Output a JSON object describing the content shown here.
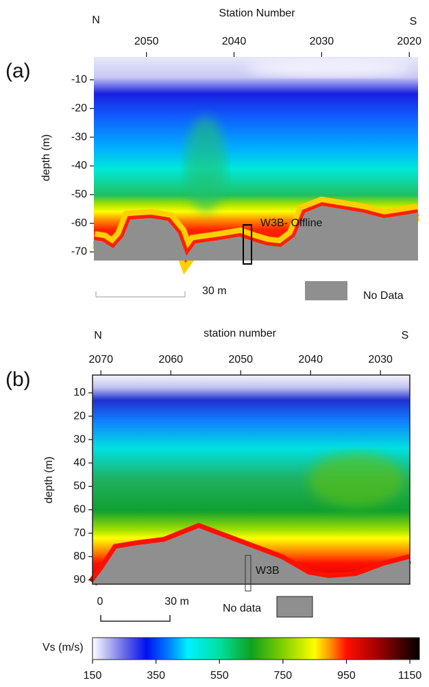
{
  "chart_data": [
    {
      "type": "heatmap",
      "panel_label": "(a)",
      "title": "Station Number",
      "ylabel": "depth (m)",
      "left_label": "N",
      "right_label": "S",
      "xlim": [
        2056,
        2019
      ],
      "xticks": [
        2050,
        2040,
        2030,
        2020
      ],
      "ylim": [
        -2,
        -73
      ],
      "yticks": [
        -10,
        -20,
        -30,
        -40,
        -50,
        -60,
        -70
      ],
      "annotations": [
        "W3B- Offline"
      ],
      "scale_labels": [
        "30 m"
      ],
      "no_data_label": "No Data"
    },
    {
      "type": "heatmap",
      "panel_label": "(b)",
      "title": "station number",
      "ylabel": "depth (m)",
      "left_label": "N",
      "right_label": "S",
      "xlim": [
        2071.2,
        2025.8
      ],
      "xticks": [
        2070,
        2060,
        2050,
        2040,
        2030
      ],
      "ylim": [
        2.4,
        91.8
      ],
      "yticks": [
        10,
        20,
        30,
        40,
        50,
        60,
        70,
        80,
        90
      ],
      "annotations": [
        "W3B"
      ],
      "scale_labels": [
        "0",
        "30 m"
      ],
      "no_data_label": "No data"
    },
    {
      "type": "colorbar",
      "label": "Vs (m/s)",
      "xlim": [
        150,
        1180
      ],
      "xticks": [
        150,
        350,
        550,
        750,
        950,
        1150
      ],
      "colorscale_values": [
        150,
        250,
        320,
        400,
        450,
        550,
        650,
        750,
        850,
        900,
        950,
        1050,
        1180
      ],
      "colorscale_colors": [
        "#ffffff",
        "#6a6ae8",
        "#0010f0",
        "#0090ff",
        "#00f0ff",
        "#00e0a0",
        "#10a020",
        "#80d000",
        "#ffff00",
        "#ff9000",
        "#ff1000",
        "#a00000",
        "#000000"
      ]
    }
  ]
}
